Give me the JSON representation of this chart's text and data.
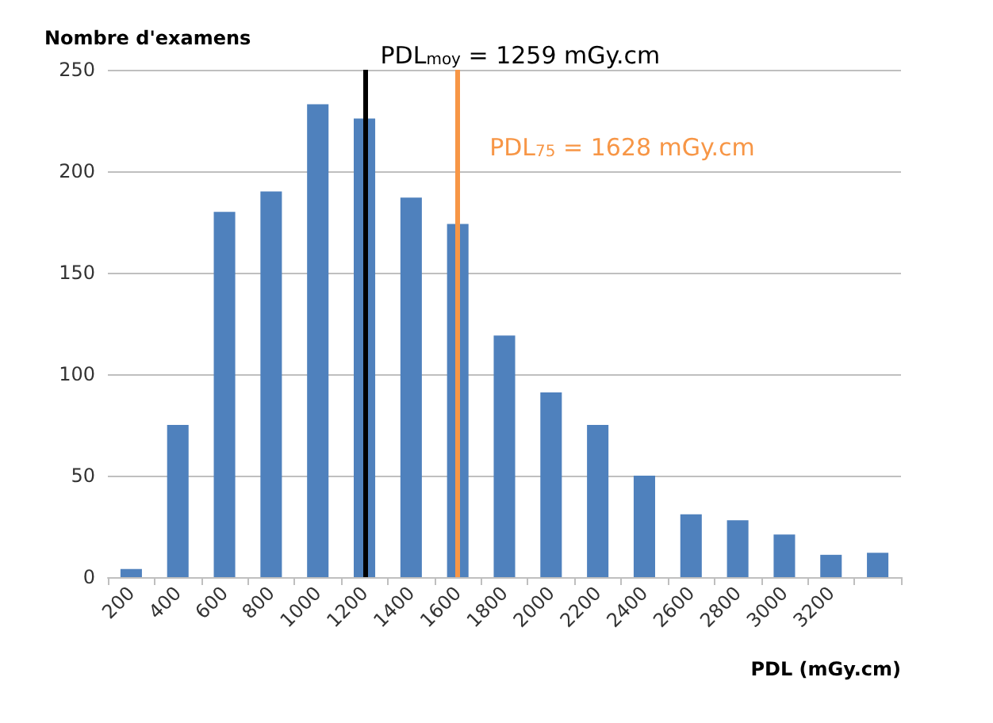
{
  "chart_data": {
    "type": "bar",
    "ylabel": "Nombre d'examens",
    "xlabel": "PDL (mGy.cm)",
    "categories": [
      "200",
      "400",
      "600",
      "800",
      "1000",
      "1200",
      "1400",
      "1600",
      "1800",
      "2000",
      "2200",
      "2400",
      "2600",
      "2800",
      "3000",
      "3200",
      null
    ],
    "values": [
      4,
      75,
      180,
      190,
      233,
      226,
      187,
      174,
      119,
      91,
      75,
      50,
      31,
      28,
      21,
      11,
      12
    ],
    "color": "#4f81bd",
    "ylim": [
      0,
      250
    ],
    "yticks": [
      0,
      50,
      100,
      150,
      200,
      250
    ],
    "grid": "y",
    "ref_lines": [
      {
        "axis": "x",
        "value": "1200",
        "label": "PDL$_{moy}$ = 1259 mGy.cm",
        "color": "#000000"
      },
      {
        "axis": "x",
        "value": "1600",
        "label": "PDL$_{75}$ = 1628 mGy.cm",
        "color": "#f79646"
      }
    ]
  }
}
